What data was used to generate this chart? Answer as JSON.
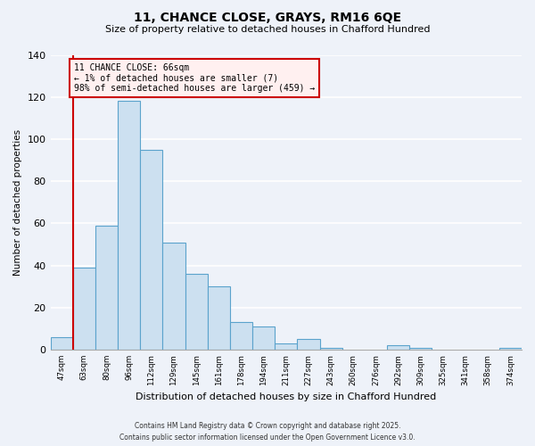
{
  "title": "11, CHANCE CLOSE, GRAYS, RM16 6QE",
  "subtitle": "Size of property relative to detached houses in Chafford Hundred",
  "xlabel": "Distribution of detached houses by size in Chafford Hundred",
  "ylabel": "Number of detached properties",
  "bar_color": "#cce0f0",
  "bar_edge_color": "#5ba3cc",
  "background_color": "#eef2f9",
  "grid_color": "white",
  "categories": [
    "47sqm",
    "63sqm",
    "80sqm",
    "96sqm",
    "112sqm",
    "129sqm",
    "145sqm",
    "161sqm",
    "178sqm",
    "194sqm",
    "211sqm",
    "227sqm",
    "243sqm",
    "260sqm",
    "276sqm",
    "292sqm",
    "309sqm",
    "325sqm",
    "341sqm",
    "358sqm",
    "374sqm"
  ],
  "values": [
    6,
    39,
    59,
    118,
    95,
    51,
    36,
    30,
    13,
    11,
    3,
    5,
    1,
    0,
    0,
    2,
    1,
    0,
    0,
    0,
    1
  ],
  "ylim": [
    0,
    140
  ],
  "yticks": [
    0,
    20,
    40,
    60,
    80,
    100,
    120,
    140
  ],
  "vline_color": "#cc0000",
  "annotation_title": "11 CHANCE CLOSE: 66sqm",
  "annotation_line1": "← 1% of detached houses are smaller (7)",
  "annotation_line2": "98% of semi-detached houses are larger (459) →",
  "annotation_box_color": "#fff0f0",
  "annotation_border_color": "#cc0000",
  "footer_line1": "Contains HM Land Registry data © Crown copyright and database right 2025.",
  "footer_line2": "Contains public sector information licensed under the Open Government Licence v3.0."
}
